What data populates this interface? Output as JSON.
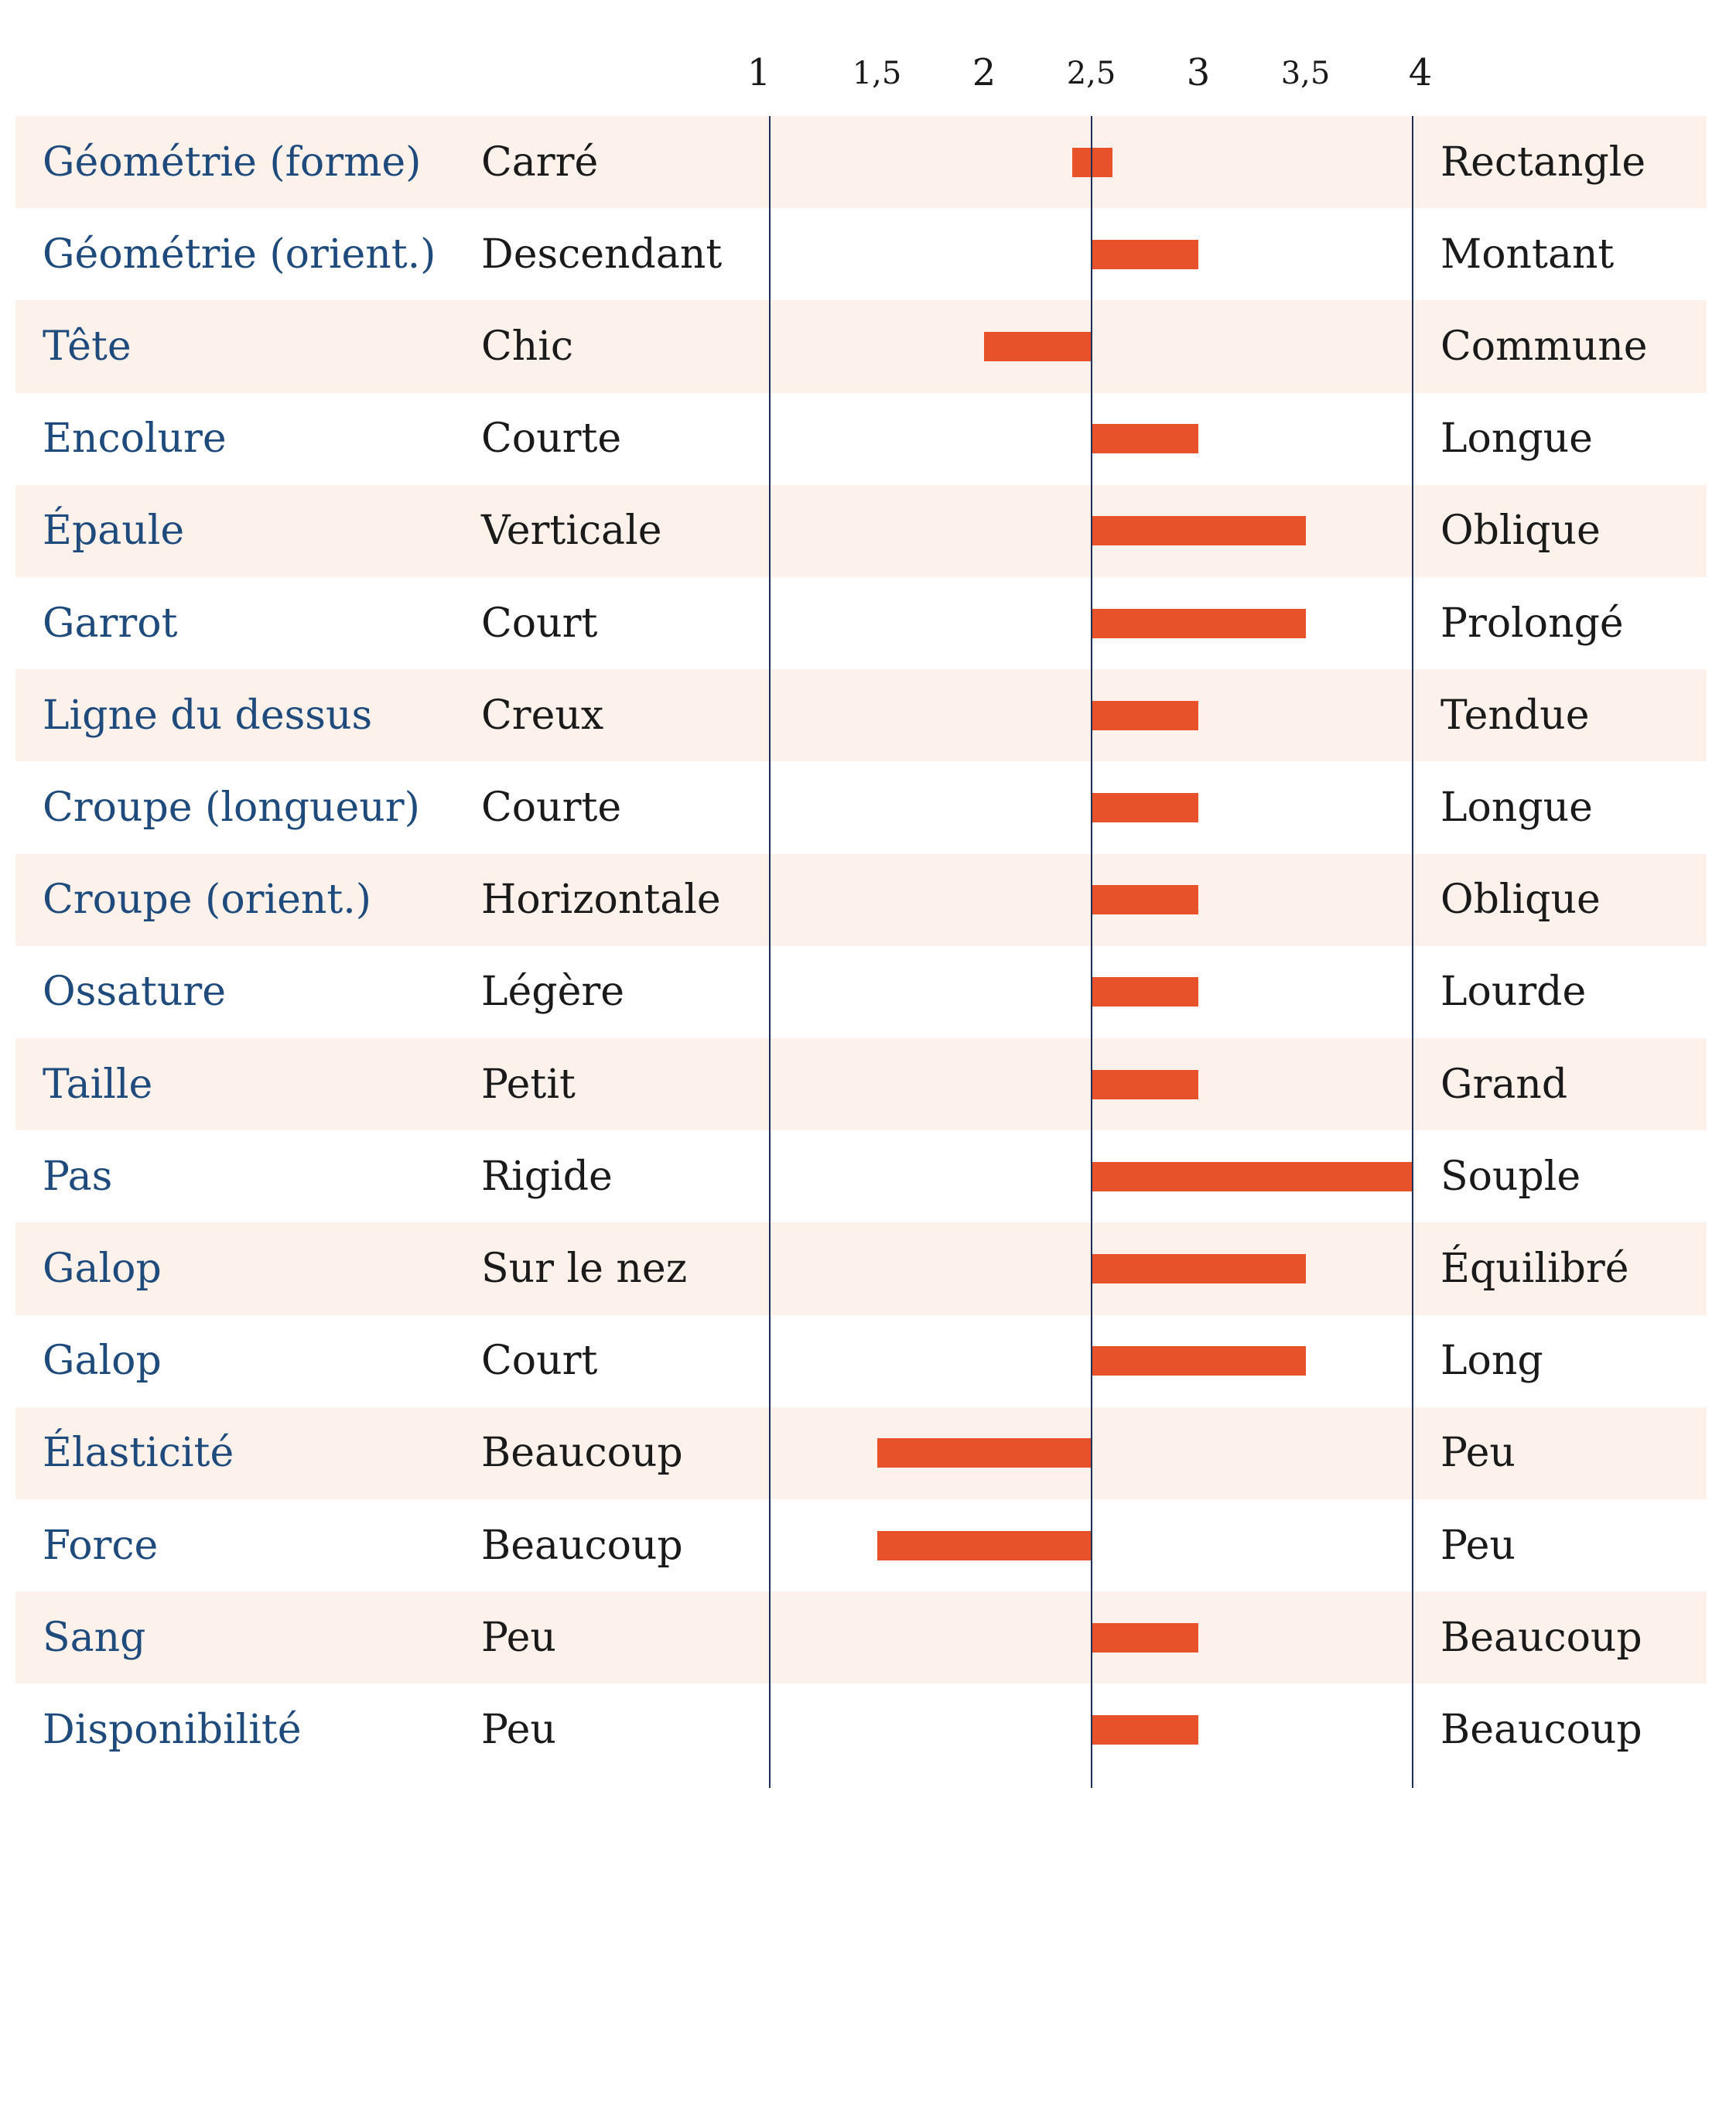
{
  "chart_data": {
    "type": "bar",
    "orientation": "horizontal",
    "baseline": 2.5,
    "xlim": [
      1,
      4
    ],
    "x_ticks": [
      "1",
      "1,5",
      "2",
      "2,5",
      "3",
      "3,5",
      "4"
    ],
    "x_tick_values": [
      1,
      1.5,
      2,
      2.5,
      3,
      3.5,
      4
    ],
    "colors": {
      "bar": "#e8522a",
      "trait_text": "#1f4a7c",
      "band": "#fdf1ec",
      "axis": "#1f2f55"
    },
    "rows": [
      {
        "trait": "Géométrie (forme)",
        "low": "Carré",
        "high": "Rectangle",
        "value": 2.6,
        "start": 2.41
      },
      {
        "trait": "Géométrie (orient.)",
        "low": "Descendant",
        "high": "Montant",
        "value": 3.0
      },
      {
        "trait": "Tête",
        "low": "Chic",
        "high": "Commune",
        "value": 2.0
      },
      {
        "trait": "Encolure",
        "low": "Courte",
        "high": "Longue",
        "value": 3.0
      },
      {
        "trait": "Épaule",
        "low": "Verticale",
        "high": "Oblique",
        "value": 3.5
      },
      {
        "trait": "Garrot",
        "low": "Court",
        "high": "Prolongé",
        "value": 3.5
      },
      {
        "trait": "Ligne du dessus",
        "low": "Creux",
        "high": "Tendue",
        "value": 3.0
      },
      {
        "trait": "Croupe (longueur)",
        "low": "Courte",
        "high": "Longue",
        "value": 3.0
      },
      {
        "trait": "Croupe (orient.)",
        "low": "Horizontale",
        "high": "Oblique",
        "value": 3.0
      },
      {
        "trait": "Ossature",
        "low": "Légère",
        "high": "Lourde",
        "value": 3.0
      },
      {
        "trait": "Taille",
        "low": "Petit",
        "high": "Grand",
        "value": 3.0
      },
      {
        "trait": "Pas",
        "low": "Rigide",
        "high": "Souple",
        "value": 4.0
      },
      {
        "trait": "Galop",
        "low": "Sur le nez",
        "high": "Équilibré",
        "value": 3.5
      },
      {
        "trait": "Galop",
        "low": "Court",
        "high": "Long",
        "value": 3.5
      },
      {
        "trait": "Élasticité",
        "low": "Beaucoup",
        "high": "Peu",
        "value": 1.5
      },
      {
        "trait": "Force",
        "low": "Beaucoup",
        "high": "Peu",
        "value": 1.5
      },
      {
        "trait": "Sang",
        "low": "Peu",
        "high": "Beaucoup",
        "value": 3.0
      },
      {
        "trait": "Disponibilité",
        "low": "Peu",
        "high": "Beaucoup",
        "value": 3.0
      }
    ]
  }
}
